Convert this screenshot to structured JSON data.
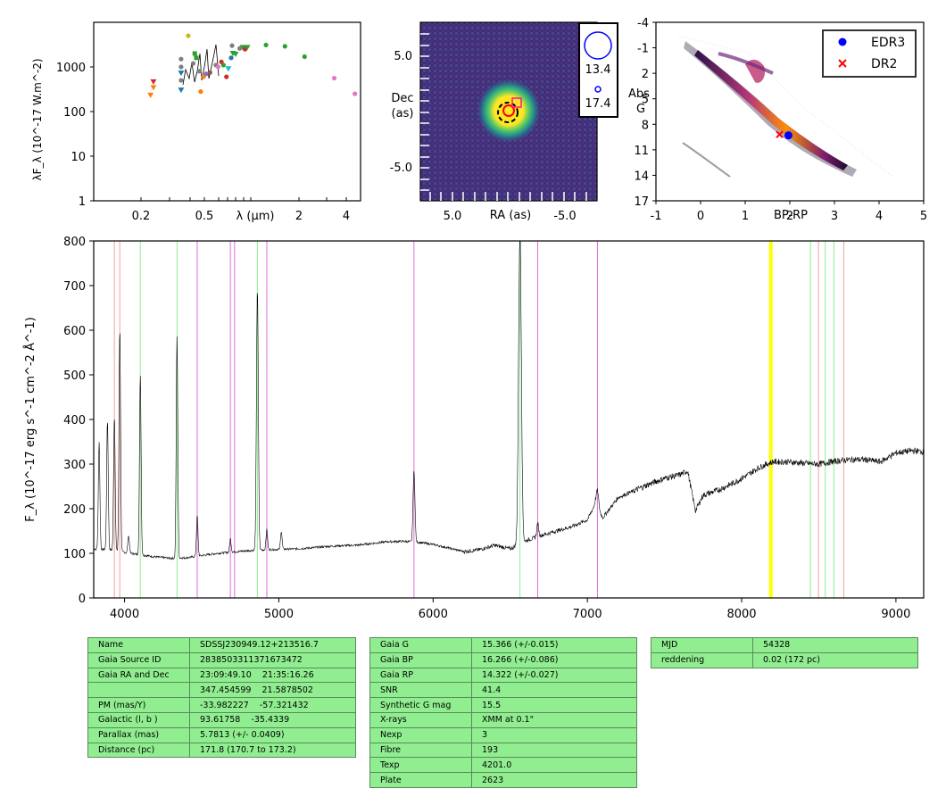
{
  "sed": {
    "ylabel": "λF_λ (10^-17 W.m^-2)",
    "xlabel": "λ (μm)",
    "xticks": [
      "0.2",
      "0.5",
      "2",
      "4"
    ],
    "yticks": [
      "1000",
      "100",
      "10",
      "1"
    ],
    "points": [
      {
        "x": 0.23,
        "y": 230,
        "c": "#ff7f0e",
        "m": "v"
      },
      {
        "x": 0.24,
        "y": 340,
        "c": "#ff7f0e",
        "m": "v"
      },
      {
        "x": 0.24,
        "y": 460,
        "c": "#d62728",
        "m": "v"
      },
      {
        "x": 0.36,
        "y": 300,
        "c": "#1f77b4",
        "m": "v"
      },
      {
        "x": 0.36,
        "y": 720,
        "c": "#1f77b4",
        "m": "v"
      },
      {
        "x": 0.36,
        "y": 1500,
        "c": "#7f7f7f",
        "m": "o"
      },
      {
        "x": 0.36,
        "y": 1000,
        "c": "#7f7f7f",
        "m": "o"
      },
      {
        "x": 0.36,
        "y": 500,
        "c": "#7f7f7f",
        "m": "o"
      },
      {
        "x": 0.4,
        "y": 5000,
        "c": "#bcbd22",
        "m": "o"
      },
      {
        "x": 0.43,
        "y": 1200,
        "c": "#7f7f7f",
        "m": "o"
      },
      {
        "x": 0.44,
        "y": 2000,
        "c": "#2ca02c",
        "m": "s"
      },
      {
        "x": 0.45,
        "y": 1600,
        "c": "#2ca02c",
        "m": "s"
      },
      {
        "x": 0.47,
        "y": 800,
        "c": "#7f7f7f",
        "m": "o"
      },
      {
        "x": 0.48,
        "y": 280,
        "c": "#ff7f0e",
        "m": "o"
      },
      {
        "x": 0.5,
        "y": 600,
        "c": "#ff7f0e",
        "m": "o"
      },
      {
        "x": 0.52,
        "y": 700,
        "c": "#9467bd",
        "m": "o"
      },
      {
        "x": 0.55,
        "y": 750,
        "c": "#8c564b",
        "m": "o"
      },
      {
        "x": 0.6,
        "y": 1100,
        "c": "#7f7f7f",
        "m": "o"
      },
      {
        "x": 0.62,
        "y": 1000,
        "c": "#e377c2",
        "m": "o"
      },
      {
        "x": 0.65,
        "y": 1300,
        "c": "#d62728",
        "m": "o"
      },
      {
        "x": 0.67,
        "y": 1100,
        "c": "#2ca02c",
        "m": "o"
      },
      {
        "x": 0.7,
        "y": 600,
        "c": "#d62728",
        "m": "o"
      },
      {
        "x": 0.72,
        "y": 900,
        "c": "#17becf",
        "m": "v"
      },
      {
        "x": 0.75,
        "y": 1600,
        "c": "#1f77b4",
        "m": "o"
      },
      {
        "x": 0.76,
        "y": 3000,
        "c": "#7f7f7f",
        "m": "o"
      },
      {
        "x": 0.77,
        "y": 2000,
        "c": "#2ca02c",
        "m": "v"
      },
      {
        "x": 0.8,
        "y": 1900,
        "c": "#2ca02c",
        "m": "v"
      },
      {
        "x": 0.85,
        "y": 2600,
        "c": "#7f7f7f",
        "m": "o"
      },
      {
        "x": 0.89,
        "y": 2700,
        "c": "#2ca02c",
        "m": "v"
      },
      {
        "x": 0.92,
        "y": 2500,
        "c": "#d62728",
        "m": "o"
      },
      {
        "x": 0.95,
        "y": 2700,
        "c": "#2ca02c",
        "m": "v"
      },
      {
        "x": 1.25,
        "y": 3100,
        "c": "#2ca02c",
        "m": "o"
      },
      {
        "x": 1.65,
        "y": 2900,
        "c": "#2ca02c",
        "m": "o"
      },
      {
        "x": 2.2,
        "y": 1700,
        "c": "#2ca02c",
        "m": "o"
      },
      {
        "x": 3.4,
        "y": 560,
        "c": "#e377c2",
        "m": "o"
      },
      {
        "x": 4.6,
        "y": 250,
        "c": "#e377c2",
        "m": "o"
      }
    ]
  },
  "image": {
    "ylabel1": "Dec",
    "ylabel2": "(as)",
    "xlabel": "RA (as)",
    "yticks": [
      "5.0",
      "-5.0"
    ],
    "xticks": [
      "5.0",
      "-5.0"
    ],
    "legend": [
      "13.4",
      "17.4"
    ]
  },
  "cmd": {
    "ylabel1": "Abs",
    "ylabel2": "G",
    "xlabel": "BP-RP",
    "xticks": [
      "-1",
      "0",
      "1",
      "2",
      "3",
      "4",
      "5"
    ],
    "yticks": [
      "-4",
      "-1",
      "2",
      "5",
      "8",
      "11",
      "14",
      "17"
    ],
    "legend": [
      {
        "label": "EDR3",
        "color": "#0000ff"
      },
      {
        "label": "DR2",
        "color": "#ff0000"
      }
    ],
    "edr3": {
      "x": 1.97,
      "y": 9.3
    },
    "dr2": {
      "x": 1.77,
      "y": 9.2
    }
  },
  "chart_data": {
    "type": "line",
    "xlim": [
      3800,
      9180
    ],
    "ylim": [
      0,
      800
    ],
    "ylabel": "F_λ (10^-17 erg s^-1 cm^-2 Å^-1)",
    "xticks": [
      "4000",
      "5000",
      "6000",
      "7000",
      "8000",
      "9000"
    ],
    "yticks": [
      "0",
      "100",
      "200",
      "300",
      "400",
      "500",
      "600",
      "700",
      "800"
    ],
    "continuum": [
      [
        3800,
        110
      ],
      [
        3900,
        108
      ],
      [
        4000,
        102
      ],
      [
        4100,
        97
      ],
      [
        4200,
        92
      ],
      [
        4300,
        89
      ],
      [
        4400,
        90
      ],
      [
        4500,
        95
      ],
      [
        4600,
        100
      ],
      [
        4700,
        103
      ],
      [
        4800,
        106
      ],
      [
        4900,
        108
      ],
      [
        5000,
        109
      ],
      [
        5100,
        110
      ],
      [
        5200,
        112
      ],
      [
        5300,
        115
      ],
      [
        5400,
        117
      ],
      [
        5500,
        118
      ],
      [
        5600,
        122
      ],
      [
        5700,
        126
      ],
      [
        5800,
        127
      ],
      [
        5900,
        125
      ],
      [
        6000,
        120
      ],
      [
        6100,
        112
      ],
      [
        6200,
        104
      ],
      [
        6300,
        108
      ],
      [
        6400,
        118
      ],
      [
        6500,
        110
      ],
      [
        6600,
        128
      ],
      [
        6700,
        140
      ],
      [
        6800,
        150
      ],
      [
        6900,
        160
      ],
      [
        7000,
        175
      ],
      [
        7050,
        210
      ],
      [
        7100,
        180
      ],
      [
        7200,
        225
      ],
      [
        7300,
        240
      ],
      [
        7400,
        255
      ],
      [
        7500,
        268
      ],
      [
        7600,
        276
      ],
      [
        7650,
        285
      ],
      [
        7700,
        195
      ],
      [
        7750,
        230
      ],
      [
        7850,
        242
      ],
      [
        7950,
        258
      ],
      [
        8050,
        278
      ],
      [
        8100,
        290
      ],
      [
        8150,
        298
      ],
      [
        8200,
        305
      ],
      [
        8300,
        305
      ],
      [
        8400,
        302
      ],
      [
        8500,
        300
      ],
      [
        8600,
        306
      ],
      [
        8700,
        310
      ],
      [
        8800,
        310
      ],
      [
        8900,
        305
      ],
      [
        9000,
        325
      ],
      [
        9100,
        330
      ],
      [
        9180,
        328
      ]
    ],
    "emission_lines": [
      {
        "x": 3835,
        "h": 240,
        "w": 5
      },
      {
        "x": 3889,
        "h": 290,
        "w": 5
      },
      {
        "x": 3934,
        "h": 300,
        "w": 5
      },
      {
        "x": 3969,
        "h": 500,
        "w": 5
      },
      {
        "x": 4026,
        "h": 40,
        "w": 5
      },
      {
        "x": 4102,
        "h": 405,
        "w": 5
      },
      {
        "x": 4340,
        "h": 495,
        "w": 5
      },
      {
        "x": 4471,
        "h": 90,
        "w": 5
      },
      {
        "x": 4686,
        "h": 30,
        "w": 5
      },
      {
        "x": 4861,
        "h": 585,
        "w": 6
      },
      {
        "x": 4922,
        "h": 45,
        "w": 5
      },
      {
        "x": 5016,
        "h": 40,
        "w": 5
      },
      {
        "x": 5876,
        "h": 160,
        "w": 6
      },
      {
        "x": 6563,
        "h": 700,
        "w": 9
      },
      {
        "x": 6678,
        "h": 30,
        "w": 6
      },
      {
        "x": 7065,
        "h": 40,
        "w": 8
      }
    ],
    "vlines": [
      {
        "x": 3934,
        "c": "#f4a0a0"
      },
      {
        "x": 3969,
        "c": "#f4a0a0"
      },
      {
        "x": 4102,
        "c": "#90ee90"
      },
      {
        "x": 4340,
        "c": "#90ee90"
      },
      {
        "x": 4471,
        "c": "#da70d6"
      },
      {
        "x": 4686,
        "c": "#da70d6"
      },
      {
        "x": 4713,
        "c": "#da70d6"
      },
      {
        "x": 4861,
        "c": "#90ee90"
      },
      {
        "x": 4922,
        "c": "#da70d6"
      },
      {
        "x": 5876,
        "c": "#da70d6"
      },
      {
        "x": 6563,
        "c": "#90ee90"
      },
      {
        "x": 6678,
        "c": "#da70d6"
      },
      {
        "x": 7065,
        "c": "#da70d6"
      },
      {
        "x": 8183,
        "c": "#ffff00"
      },
      {
        "x": 8195,
        "c": "#ffff00"
      },
      {
        "x": 8446,
        "c": "#90ee90"
      },
      {
        "x": 8498,
        "c": "#f4a0a0"
      },
      {
        "x": 8542,
        "c": "#90ee90"
      },
      {
        "x": 8598,
        "c": "#90ee90"
      },
      {
        "x": 8662,
        "c": "#f4a0a0"
      }
    ]
  },
  "tables": {
    "t1": [
      [
        "Name",
        "SDSSJ230949.12+213516.7"
      ],
      [
        "Gaia Source ID",
        "2838503311371673472"
      ],
      [
        "Gaia RA and Dec",
        "23:09:49.10    21:35:16.26"
      ],
      [
        "",
        "347.454599    21.5878502"
      ],
      [
        "PM (mas/Y)",
        "-33.982227    -57.321432"
      ],
      [
        "Galactic (l, b )",
        "93.61758    -35.4339"
      ],
      [
        "Parallax (mas)",
        "5.7813 (+/- 0.0409)"
      ],
      [
        "Distance (pc)",
        "171.8 (170.7 to 173.2)"
      ]
    ],
    "t2": [
      [
        "Gaia G",
        "15.366 (+/-0.015)"
      ],
      [
        "Gaia BP",
        "16.266 (+/-0.086)"
      ],
      [
        "Gaia RP",
        "14.322 (+/-0.027)"
      ],
      [
        "SNR",
        "41.4"
      ],
      [
        "Synthetic G mag",
        "15.5"
      ],
      [
        "X-rays",
        "XMM at 0.1\""
      ],
      [
        "Nexp",
        "3"
      ],
      [
        "Fibre",
        "193"
      ],
      [
        "Texp",
        "4201.0"
      ],
      [
        "Plate",
        "2623"
      ]
    ],
    "t3": [
      [
        "MJD",
        "54328"
      ],
      [
        "reddening",
        "0.02 (172 pc)"
      ]
    ]
  }
}
